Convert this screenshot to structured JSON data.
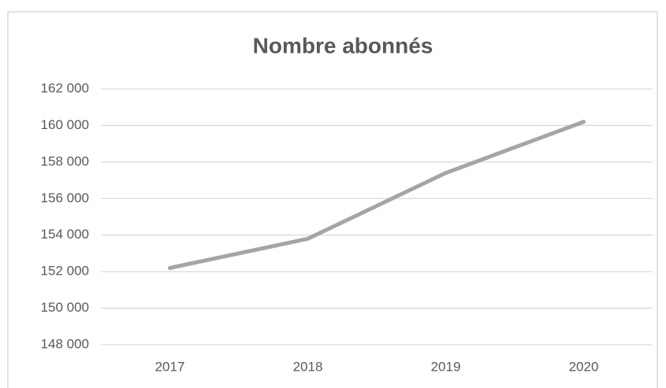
{
  "chart_data": {
    "type": "line",
    "title": "Nombre abonnés",
    "categories": [
      "2017",
      "2018",
      "2019",
      "2020"
    ],
    "series": [
      {
        "name": "Nombre abonnés",
        "color": "#a5a5a5",
        "values": [
          152200,
          153800,
          157400,
          160200
        ]
      }
    ],
    "ylim": [
      148000,
      162000
    ],
    "yticks": [
      {
        "value": 148000,
        "label": "148 000"
      },
      {
        "value": 150000,
        "label": "150 000"
      },
      {
        "value": 152000,
        "label": "152 000"
      },
      {
        "value": 154000,
        "label": "154 000"
      },
      {
        "value": 156000,
        "label": "156 000"
      },
      {
        "value": 158000,
        "label": "158 000"
      },
      {
        "value": 160000,
        "label": "160 000"
      },
      {
        "value": 162000,
        "label": "162 000"
      }
    ],
    "grid": true
  }
}
